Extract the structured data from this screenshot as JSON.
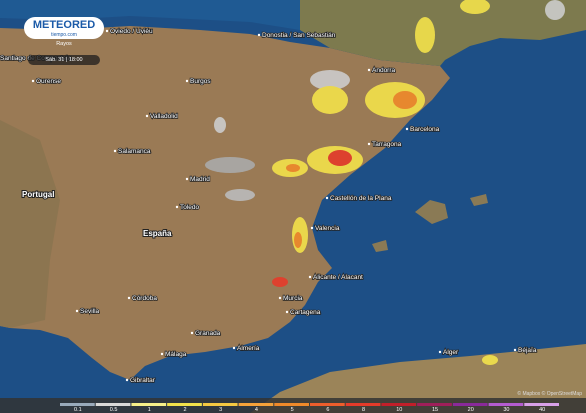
{
  "header": {
    "logo": "METEORED",
    "logo_sub": "tiempo.com"
  },
  "panel": {
    "layer": "Rayos",
    "time": "Sáb. 31 | 18:00"
  },
  "places": [
    "Oviedo / Uviéu",
    "Santiago de Compostela",
    "Ourense",
    "Burgos",
    "Valladolid",
    "Salamanca",
    "Madrid",
    "Toledo",
    "Portugal",
    "España",
    "Córdoba",
    "Sevilla",
    "Granada",
    "Málaga",
    "Almería",
    "Gibraltar",
    "Murcia",
    "Cartagena",
    "Alicante / Alacant",
    "Valencia",
    "Castellón de la Plana",
    "Tarragona",
    "Barcelona",
    "Andorra",
    "Donostia / San Sebastián",
    "Alger",
    "Béjaïa"
  ],
  "legend": {
    "labels": [
      "0.1",
      "0.5",
      "1",
      "2",
      "3",
      "4",
      "5",
      "6",
      "8",
      "10",
      "15",
      "20",
      "30",
      "40"
    ]
  },
  "attribution": "© Mapbox © OpenStreetMap"
}
